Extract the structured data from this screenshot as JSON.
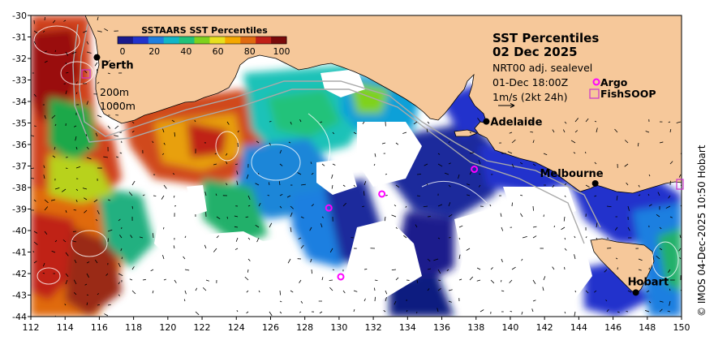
{
  "title": "SST Percentiles",
  "date": "02 Dec 2025",
  "info": {
    "line1": "NRT00 adj. sealevel",
    "line2": "01-Dec 18:00Z",
    "line3": "1m/s (2kt 24h)"
  },
  "legend": {
    "title": "SSTAARS SST Percentiles",
    "ticks": [
      "0",
      "20",
      "40",
      "60",
      "80",
      "100"
    ],
    "colors": [
      "#1a1a8c",
      "#2233cc",
      "#1e7fe0",
      "#11b6c8",
      "#22c27a",
      "#7fd21e",
      "#e8e01e",
      "#f5a800",
      "#e06a10",
      "#c02018",
      "#7a0a0a"
    ],
    "argo_label": "Argo",
    "fishsoop_label": "FishSOOP",
    "contour_200": "200m",
    "contour_1000": "1000m"
  },
  "axes": {
    "x_ticks": [
      "112",
      "114",
      "116",
      "118",
      "120",
      "122",
      "124",
      "126",
      "128",
      "130",
      "132",
      "134",
      "136",
      "138",
      "140",
      "142",
      "144",
      "146",
      "148",
      "150"
    ],
    "y_ticks": [
      "-30",
      "-31",
      "-32",
      "-33",
      "-34",
      "-35",
      "-36",
      "-37",
      "-38",
      "-39",
      "-40",
      "-41",
      "-42",
      "-43",
      "-44"
    ]
  },
  "cities": [
    {
      "name": "Perth",
      "lon": 115.86,
      "lat": -31.95
    },
    {
      "name": "Adelaide",
      "lon": 138.6,
      "lat": -34.93
    },
    {
      "name": "Melbourne",
      "lon": 144.96,
      "lat": -37.81
    },
    {
      "name": "Hobart",
      "lon": 147.33,
      "lat": -42.88
    }
  ],
  "argo_floats": [
    {
      "lon": 129.4,
      "lat": -38.95
    },
    {
      "lon": 132.5,
      "lat": -38.3
    },
    {
      "lon": 137.9,
      "lat": -37.15
    },
    {
      "lon": 130.1,
      "lat": -42.15
    }
  ],
  "credit": "© IMOS 04-Dec-2025 10:50 Hobart",
  "colors": {
    "land": "#f6c89a",
    "coast": "#000000",
    "argo": "#ff00ff",
    "fishsoop": "#cc33cc"
  }
}
